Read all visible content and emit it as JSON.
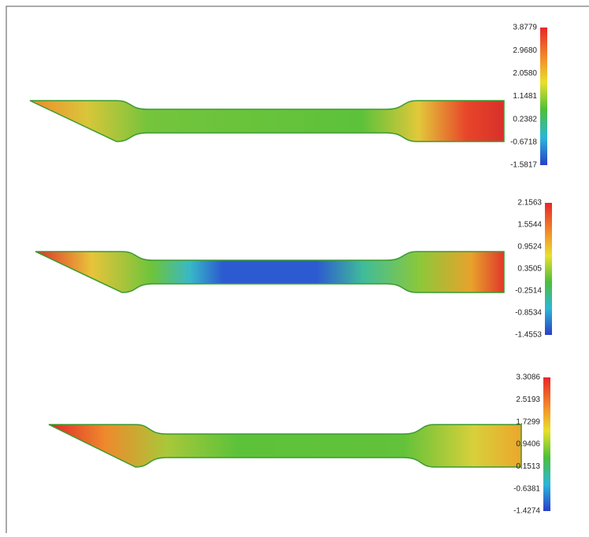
{
  "panels": [
    {
      "colorbar": {
        "ticks": [
          "3.8779",
          "2.9680",
          "2.0580",
          "1.1481",
          "0.2382",
          "-0.6718",
          "-1.5817"
        ]
      }
    },
    {
      "colorbar": {
        "ticks": [
          "2.1563",
          "1.5544",
          "0.9524",
          "0.3505",
          "-0.2514",
          "-0.8534",
          "-1.4553"
        ]
      }
    },
    {
      "colorbar": {
        "ticks": [
          "3.3086",
          "2.5193",
          "1.7299",
          "0.9406",
          "0.1513",
          "-0.6381",
          "-1.4274"
        ]
      }
    }
  ]
}
